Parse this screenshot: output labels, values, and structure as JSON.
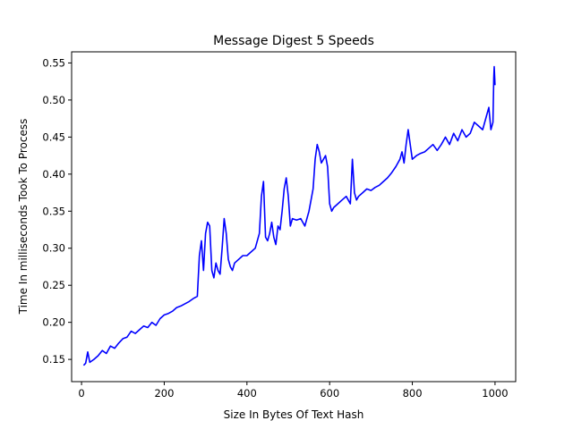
{
  "chart_data": {
    "type": "line",
    "title": "Message Digest 5 Speeds",
    "xlabel": "Size In Bytes Of Text Hash",
    "ylabel": "Time In milliseconds Took To Process",
    "xlim": [
      -24,
      1050
    ],
    "ylim": [
      0.12,
      0.565
    ],
    "xticks": [
      0,
      200,
      400,
      600,
      800,
      1000
    ],
    "xtick_labels": [
      "0",
      "200",
      "400",
      "600",
      "800",
      "1000"
    ],
    "yticks": [
      0.15,
      0.2,
      0.25,
      0.3,
      0.35,
      0.4,
      0.45,
      0.5,
      0.55
    ],
    "ytick_labels": [
      "0.15",
      "0.20",
      "0.25",
      "0.30",
      "0.35",
      "0.40",
      "0.45",
      "0.50",
      "0.55"
    ],
    "grid": false,
    "legend": "none",
    "series": [
      {
        "color": "#0000ff",
        "x": [
          5,
          10,
          15,
          20,
          30,
          40,
          50,
          60,
          70,
          80,
          90,
          100,
          110,
          120,
          130,
          140,
          150,
          160,
          170,
          180,
          190,
          200,
          210,
          220,
          230,
          240,
          250,
          260,
          270,
          280,
          285,
          290,
          295,
          300,
          305,
          310,
          315,
          320,
          325,
          330,
          335,
          340,
          345,
          350,
          355,
          360,
          365,
          370,
          380,
          390,
          400,
          410,
          420,
          430,
          435,
          440,
          445,
          450,
          455,
          460,
          465,
          470,
          475,
          480,
          485,
          490,
          495,
          500,
          505,
          510,
          520,
          530,
          540,
          550,
          560,
          565,
          570,
          575,
          580,
          585,
          590,
          595,
          600,
          605,
          610,
          620,
          630,
          640,
          650,
          655,
          660,
          665,
          670,
          680,
          690,
          700,
          710,
          720,
          730,
          740,
          750,
          760,
          770,
          775,
          780,
          785,
          790,
          800,
          810,
          820,
          830,
          840,
          850,
          860,
          870,
          880,
          890,
          900,
          910,
          920,
          930,
          940,
          950,
          960,
          970,
          980,
          985,
          990,
          995,
          997,
          998,
          1000
        ],
        "y": [
          0.142,
          0.145,
          0.16,
          0.146,
          0.15,
          0.155,
          0.162,
          0.158,
          0.168,
          0.165,
          0.172,
          0.178,
          0.18,
          0.188,
          0.185,
          0.19,
          0.195,
          0.193,
          0.2,
          0.196,
          0.205,
          0.21,
          0.212,
          0.215,
          0.22,
          0.222,
          0.225,
          0.228,
          0.232,
          0.235,
          0.29,
          0.31,
          0.27,
          0.32,
          0.335,
          0.33,
          0.27,
          0.26,
          0.28,
          0.27,
          0.265,
          0.3,
          0.34,
          0.32,
          0.285,
          0.275,
          0.27,
          0.28,
          0.285,
          0.29,
          0.29,
          0.295,
          0.3,
          0.32,
          0.37,
          0.39,
          0.315,
          0.31,
          0.32,
          0.335,
          0.315,
          0.305,
          0.33,
          0.325,
          0.35,
          0.38,
          0.395,
          0.37,
          0.33,
          0.34,
          0.338,
          0.34,
          0.33,
          0.35,
          0.38,
          0.42,
          0.44,
          0.43,
          0.415,
          0.42,
          0.425,
          0.41,
          0.36,
          0.35,
          0.355,
          0.36,
          0.365,
          0.37,
          0.36,
          0.42,
          0.375,
          0.365,
          0.37,
          0.375,
          0.38,
          0.378,
          0.382,
          0.385,
          0.39,
          0.395,
          0.402,
          0.41,
          0.42,
          0.43,
          0.415,
          0.44,
          0.46,
          0.42,
          0.425,
          0.428,
          0.43,
          0.435,
          0.44,
          0.432,
          0.44,
          0.45,
          0.44,
          0.455,
          0.445,
          0.46,
          0.45,
          0.455,
          0.47,
          0.465,
          0.46,
          0.48,
          0.49,
          0.46,
          0.47,
          0.53,
          0.545,
          0.52
        ]
      }
    ]
  }
}
